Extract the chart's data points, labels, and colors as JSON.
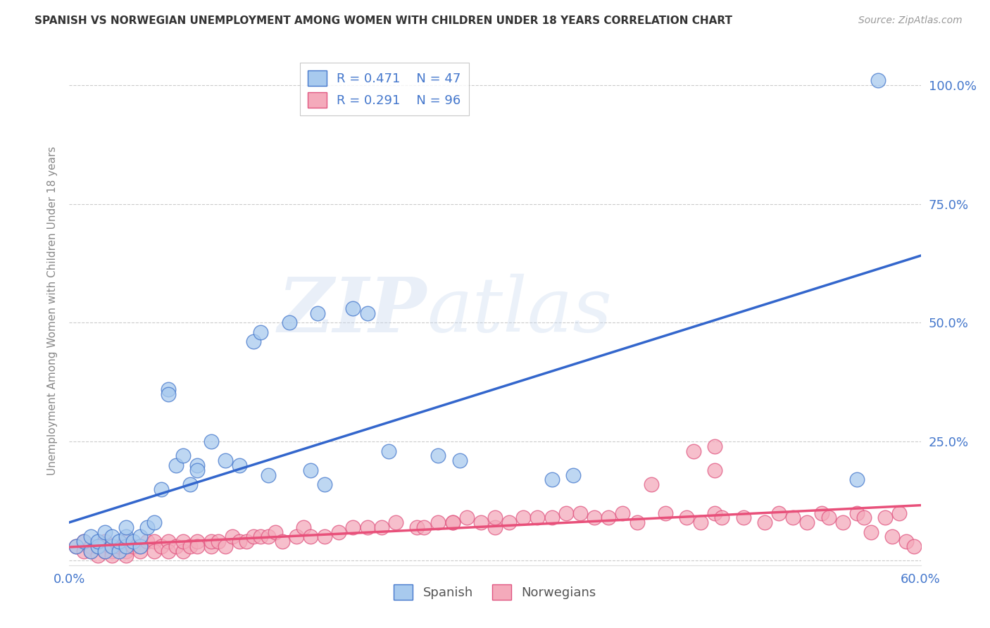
{
  "title": "SPANISH VS NORWEGIAN UNEMPLOYMENT AMONG WOMEN WITH CHILDREN UNDER 18 YEARS CORRELATION CHART",
  "source": "Source: ZipAtlas.com",
  "ylabel": "Unemployment Among Women with Children Under 18 years",
  "xlim": [
    0.0,
    0.6
  ],
  "ylim": [
    -0.01,
    1.06
  ],
  "spanish_color": "#A8CAEE",
  "norwegian_color": "#F4AABB",
  "spanish_edge_color": "#4477CC",
  "norwegian_edge_color": "#E05580",
  "spanish_line_color": "#3366CC",
  "norwegian_line_color": "#E8507A",
  "spanish_R": 0.471,
  "spanish_N": 47,
  "norwegian_R": 0.291,
  "norwegian_N": 96,
  "watermark_zip": "ZIP",
  "watermark_atlas": "atlas",
  "background_color": "#FFFFFF",
  "grid_color": "#CCCCCC",
  "title_color": "#333333",
  "tick_color": "#4477CC",
  "label_color": "#888888",
  "spanish_x": [
    0.005,
    0.01,
    0.015,
    0.015,
    0.02,
    0.02,
    0.025,
    0.025,
    0.03,
    0.03,
    0.035,
    0.035,
    0.04,
    0.04,
    0.04,
    0.045,
    0.05,
    0.05,
    0.055,
    0.06,
    0.065,
    0.07,
    0.07,
    0.075,
    0.08,
    0.085,
    0.09,
    0.09,
    0.1,
    0.11,
    0.12,
    0.13,
    0.135,
    0.14,
    0.155,
    0.17,
    0.175,
    0.18,
    0.2,
    0.21,
    0.225,
    0.26,
    0.275,
    0.34,
    0.355,
    0.555,
    0.57
  ],
  "spanish_y": [
    0.03,
    0.04,
    0.02,
    0.05,
    0.03,
    0.04,
    0.02,
    0.06,
    0.03,
    0.05,
    0.02,
    0.04,
    0.03,
    0.05,
    0.07,
    0.04,
    0.03,
    0.05,
    0.07,
    0.08,
    0.15,
    0.36,
    0.35,
    0.2,
    0.22,
    0.16,
    0.2,
    0.19,
    0.25,
    0.21,
    0.2,
    0.46,
    0.48,
    0.18,
    0.5,
    0.19,
    0.52,
    0.16,
    0.53,
    0.52,
    0.23,
    0.22,
    0.21,
    0.17,
    0.18,
    0.17,
    1.01
  ],
  "norwegian_x": [
    0.005,
    0.01,
    0.01,
    0.015,
    0.015,
    0.02,
    0.02,
    0.025,
    0.025,
    0.03,
    0.03,
    0.03,
    0.035,
    0.04,
    0.04,
    0.04,
    0.045,
    0.05,
    0.05,
    0.055,
    0.06,
    0.06,
    0.065,
    0.07,
    0.07,
    0.075,
    0.08,
    0.08,
    0.085,
    0.09,
    0.09,
    0.1,
    0.1,
    0.105,
    0.11,
    0.115,
    0.12,
    0.125,
    0.13,
    0.135,
    0.14,
    0.145,
    0.15,
    0.16,
    0.165,
    0.17,
    0.18,
    0.19,
    0.2,
    0.21,
    0.22,
    0.23,
    0.245,
    0.25,
    0.26,
    0.27,
    0.28,
    0.29,
    0.3,
    0.31,
    0.32,
    0.33,
    0.34,
    0.35,
    0.36,
    0.37,
    0.38,
    0.39,
    0.4,
    0.42,
    0.435,
    0.445,
    0.455,
    0.46,
    0.475,
    0.49,
    0.5,
    0.51,
    0.52,
    0.53,
    0.535,
    0.545,
    0.555,
    0.56,
    0.565,
    0.575,
    0.58,
    0.585,
    0.59,
    0.595,
    0.44,
    0.455,
    0.27,
    0.3,
    0.41,
    0.455
  ],
  "norwegian_y": [
    0.03,
    0.02,
    0.04,
    0.03,
    0.02,
    0.01,
    0.03,
    0.02,
    0.04,
    0.02,
    0.03,
    0.01,
    0.03,
    0.02,
    0.04,
    0.01,
    0.03,
    0.03,
    0.02,
    0.04,
    0.04,
    0.02,
    0.03,
    0.04,
    0.02,
    0.03,
    0.02,
    0.04,
    0.03,
    0.04,
    0.03,
    0.03,
    0.04,
    0.04,
    0.03,
    0.05,
    0.04,
    0.04,
    0.05,
    0.05,
    0.05,
    0.06,
    0.04,
    0.05,
    0.07,
    0.05,
    0.05,
    0.06,
    0.07,
    0.07,
    0.07,
    0.08,
    0.07,
    0.07,
    0.08,
    0.08,
    0.09,
    0.08,
    0.07,
    0.08,
    0.09,
    0.09,
    0.09,
    0.1,
    0.1,
    0.09,
    0.09,
    0.1,
    0.08,
    0.1,
    0.09,
    0.08,
    0.1,
    0.09,
    0.09,
    0.08,
    0.1,
    0.09,
    0.08,
    0.1,
    0.09,
    0.08,
    0.1,
    0.09,
    0.06,
    0.09,
    0.05,
    0.1,
    0.04,
    0.03,
    0.23,
    0.24,
    0.08,
    0.09,
    0.16,
    0.19
  ]
}
